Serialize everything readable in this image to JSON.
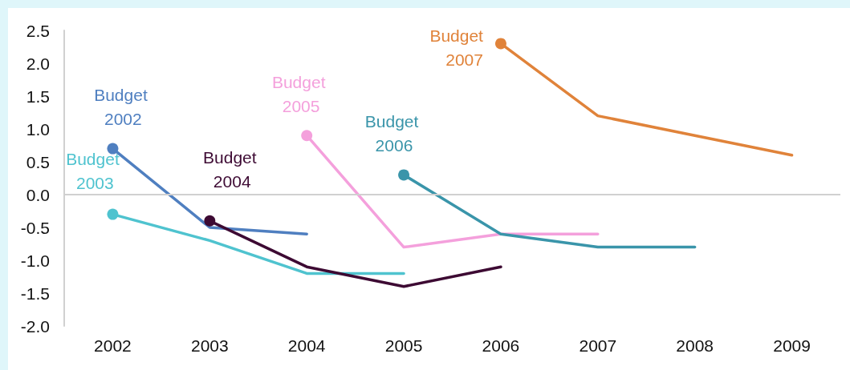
{
  "chart_data": {
    "type": "line",
    "categories": [
      "2002",
      "2003",
      "2004",
      "2005",
      "2006",
      "2007",
      "2008",
      "2009"
    ],
    "ylim": [
      -2,
      2.5
    ],
    "yticks": [
      {
        "value": -2,
        "label": "-2.0"
      },
      {
        "value": -1.5,
        "label": "-1.5"
      },
      {
        "value": -1,
        "label": "-1.0"
      },
      {
        "value": -0.5,
        "label": "-0.5"
      },
      {
        "value": 0,
        "label": "0.0"
      },
      {
        "value": 0.5,
        "label": "0.5"
      },
      {
        "value": 1,
        "label": "1.0"
      },
      {
        "value": 1.5,
        "label": "1.5"
      },
      {
        "value": 2,
        "label": "2.0"
      },
      {
        "value": 2.5,
        "label": "2.5"
      }
    ],
    "ref_lines": [
      {
        "axis": "y",
        "value": 0,
        "color": "#d0d0d0"
      }
    ],
    "legend": false,
    "line_style": "solid",
    "series": [
      {
        "name": "Budget 2002",
        "color": "#4f7fc0",
        "values": [
          0.7,
          -0.5,
          -0.6,
          null,
          null,
          null,
          null,
          null
        ]
      },
      {
        "name": "Budget 2003",
        "color": "#4fc3cf",
        "values": [
          -0.3,
          -0.7,
          -1.2,
          -1.2,
          null,
          null,
          null,
          null
        ]
      },
      {
        "name": "Budget 2004",
        "color": "#3d0a33",
        "values": [
          null,
          -0.4,
          -1.1,
          -1.4,
          -1.1,
          null,
          null,
          null
        ]
      },
      {
        "name": "Budget 2005",
        "color": "#f4a0dc",
        "values": [
          null,
          null,
          0.9,
          -0.8,
          -0.6,
          -0.6,
          null,
          null
        ]
      },
      {
        "name": "Budget 2006",
        "color": "#3a95aa",
        "values": [
          null,
          null,
          null,
          0.3,
          -0.6,
          -0.8,
          -0.8,
          null
        ]
      },
      {
        "name": "Budget 2007",
        "color": "#e0833a",
        "values": [
          null,
          null,
          null,
          null,
          2.3,
          1.2,
          0.9,
          0.6
        ]
      }
    ]
  }
}
